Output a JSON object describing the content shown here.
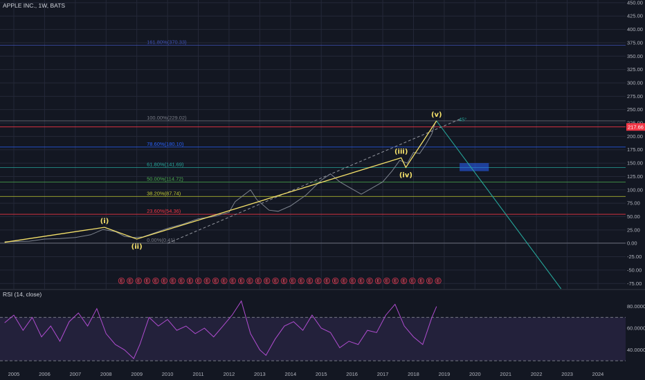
{
  "header": {
    "symbol_title": "APPLE INC., 1W, BATS"
  },
  "rsi_panel": {
    "label": "RSI (14, close)"
  },
  "colors": {
    "background": "#131722",
    "grid": "#242838",
    "price_line": "#7f8590",
    "elliott_wave": "#f7e36b",
    "projection": "#26a69a",
    "rsi_line": "#b14dd1",
    "last_price_bg": "#f23645"
  },
  "chart_data": [
    {
      "type": "line",
      "title": "APPLE INC., 1W, BATS",
      "x_ticks": [
        "2005",
        "2006",
        "2007",
        "2008",
        "2009",
        "2010",
        "2011",
        "2012",
        "2013",
        "2014",
        "2015",
        "2016",
        "2017",
        "2018",
        "2019",
        "2020",
        "2021",
        "2022",
        "2023",
        "2024"
      ],
      "y_ticks": [
        450,
        425,
        400,
        375,
        350,
        325,
        300,
        275,
        250,
        225,
        200,
        175,
        150,
        125,
        100,
        75,
        50,
        25,
        0,
        -25,
        -50,
        -75
      ],
      "ylim": [
        -85,
        455
      ],
      "last_price": {
        "value": 217.66,
        "label": "217.66"
      },
      "price_series": {
        "x": [
          2004.7,
          2005.5,
          2006.0,
          2006.5,
          2007.0,
          2007.5,
          2007.9,
          2008.3,
          2008.6,
          2008.9,
          2009.2,
          2009.6,
          2010.0,
          2010.5,
          2011.0,
          2011.5,
          2012.0,
          2012.2,
          2012.7,
          2012.9,
          2013.3,
          2013.6,
          2014.0,
          2014.5,
          2015.0,
          2015.3,
          2015.6,
          2015.9,
          2016.3,
          2016.7,
          2017.0,
          2017.3,
          2017.55,
          2017.8,
          2018.0,
          2018.2,
          2018.4,
          2018.6,
          2018.7
        ],
        "y": [
          3,
          4,
          8,
          9,
          11,
          16,
          26,
          22,
          13,
          11,
          12,
          20,
          28,
          36,
          46,
          50,
          58,
          78,
          100,
          82,
          62,
          60,
          70,
          90,
          118,
          130,
          115,
          105,
          92,
          105,
          115,
          135,
          155,
          150,
          170,
          168,
          185,
          205,
          225
        ]
      },
      "elliott_wave": {
        "points": [
          {
            "label": "(i)",
            "x": 2007.95,
            "y": 30
          },
          {
            "label": "(ii)",
            "x": 2009.0,
            "y": 8
          },
          {
            "label": "(iii)",
            "x": 2017.6,
            "y": 160
          },
          {
            "label": "(iv)",
            "x": 2017.75,
            "y": 142
          },
          {
            "label": "(v)",
            "x": 2018.75,
            "y": 229
          }
        ],
        "start": {
          "x": 2004.7,
          "y": 2
        }
      },
      "fibonacci_levels": [
        {
          "label": "161.80%(370.33)",
          "value": 370.33,
          "color": "#3f51b5"
        },
        {
          "label": "100.00%(229.02)",
          "value": 229.02,
          "color": "#787b86"
        },
        {
          "label": "78.60%(180.10)",
          "value": 180.1,
          "color": "#2962ff"
        },
        {
          "label": "61.80%(141.69)",
          "value": 141.69,
          "color": "#26a69a"
        },
        {
          "label": "50.00%(114.72)",
          "value": 114.72,
          "color": "#4caf50"
        },
        {
          "label": "38.20%(87.74)",
          "value": 87.74,
          "color": "#c0ca33"
        },
        {
          "label": "23.60%(54.36)",
          "value": 54.36,
          "color": "#f23645"
        },
        {
          "label": "0.00%(0.41)",
          "value": 0.41,
          "color": "#787b86"
        }
      ],
      "red_horizontal_level": 217.66,
      "annotations": [
        {
          "text": "45°",
          "x": 2019.6,
          "y": 228
        }
      ],
      "projection_line": {
        "from": {
          "x": 2018.75,
          "y": 229
        },
        "to": {
          "x": 2022.8,
          "y": -85
        }
      },
      "target_box": {
        "x0": 2019.5,
        "x1": 2020.45,
        "y0": 135,
        "y1": 150
      },
      "dashed_trendline": {
        "from": {
          "x": 2010.0,
          "y": 0
        },
        "to": {
          "x": 2019.5,
          "y": 232
        }
      },
      "earnings_markers": {
        "label": "E",
        "count": 38,
        "x_start": 2008.5,
        "x_end": 2018.8,
        "y": -70
      }
    },
    {
      "type": "line",
      "title": "RSI (14, close)",
      "y_ticks": [
        "80.0000",
        "60.0000",
        "40.0000"
      ],
      "ylim": [
        25,
        95
      ],
      "bands": {
        "upper": 70,
        "lower": 30
      },
      "rsi_series": {
        "x": [
          2004.7,
          2005.0,
          2005.3,
          2005.6,
          2005.9,
          2006.2,
          2006.5,
          2006.8,
          2007.1,
          2007.4,
          2007.7,
          2008.0,
          2008.3,
          2008.6,
          2008.9,
          2009.1,
          2009.4,
          2009.7,
          2010.0,
          2010.3,
          2010.6,
          2010.9,
          2011.2,
          2011.5,
          2011.8,
          2012.1,
          2012.4,
          2012.7,
          2013.0,
          2013.2,
          2013.5,
          2013.8,
          2014.1,
          2014.4,
          2014.7,
          2015.0,
          2015.3,
          2015.6,
          2015.9,
          2016.2,
          2016.5,
          2016.8,
          2017.1,
          2017.4,
          2017.7,
          2018.0,
          2018.3,
          2018.6,
          2018.75
        ],
        "y": [
          65,
          72,
          58,
          70,
          52,
          62,
          48,
          66,
          74,
          62,
          78,
          55,
          45,
          40,
          32,
          45,
          70,
          62,
          68,
          58,
          62,
          55,
          60,
          52,
          62,
          72,
          85,
          55,
          40,
          35,
          50,
          62,
          66,
          58,
          72,
          60,
          56,
          42,
          48,
          45,
          58,
          56,
          72,
          82,
          62,
          52,
          45,
          70,
          80
        ]
      }
    }
  ]
}
